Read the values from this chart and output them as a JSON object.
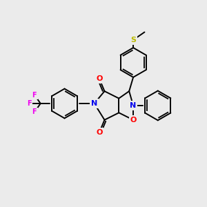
{
  "background_color": "#ebebeb",
  "figsize": [
    3.0,
    3.0
  ],
  "dpi": 100,
  "bond_color": "#000000",
  "bond_lw": 1.4,
  "atom_colors": {
    "N": "#0000ee",
    "O": "#ff0000",
    "S": "#bbbb00",
    "F": "#ee00ee",
    "C": "#000000"
  },
  "fs": 8,
  "xlim": [
    0,
    10
  ],
  "ylim": [
    0,
    10
  ]
}
